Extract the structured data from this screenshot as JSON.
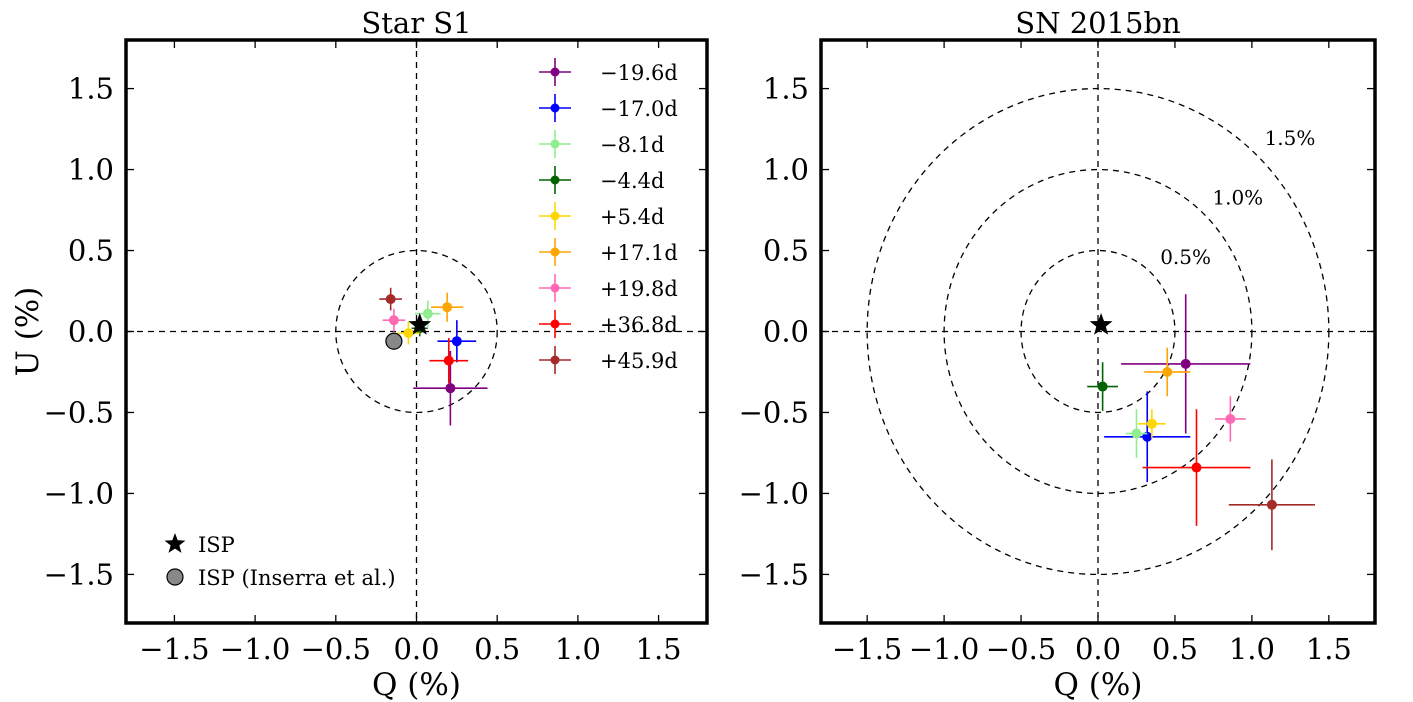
{
  "chart_data": [
    {
      "type": "scatter",
      "title": "Star S1",
      "xlabel": "Q (%)",
      "ylabel": "U (%)",
      "xlim": [
        -1.8,
        1.8
      ],
      "ylim": [
        -1.8,
        1.8
      ],
      "xticks": [
        "−1.5",
        "−1.0",
        "−0.5",
        "0.0",
        "0.5",
        "1.0",
        "1.5"
      ],
      "yticks": [
        "1.5",
        "1.0",
        "0.5",
        "0.0",
        "−0.5",
        "−1.0",
        "−1.5"
      ],
      "circles": [
        {
          "radius": 0.5
        }
      ],
      "epochs": [
        {
          "label": "−19.6d",
          "color": "#800080",
          "q": 0.21,
          "u": -0.35,
          "q_err": 0.23,
          "u_err": 0.23
        },
        {
          "label": "−17.0d",
          "color": "#0000ff",
          "q": 0.25,
          "u": -0.06,
          "q_err": 0.12,
          "u_err": 0.13
        },
        {
          "label": "−8.1d",
          "color": "#90ee90",
          "q": 0.07,
          "u": 0.11,
          "q_err": 0.08,
          "u_err": 0.08
        },
        {
          "label": "−4.4d",
          "color": "#006400",
          "q": 0.02,
          "u": 0.02,
          "q_err": 0.05,
          "u_err": 0.05
        },
        {
          "label": "+5.4d",
          "color": "#ffd700",
          "q": -0.05,
          "u": -0.01,
          "q_err": 0.07,
          "u_err": 0.07
        },
        {
          "label": "+17.1d",
          "color": "#ffa500",
          "q": 0.19,
          "u": 0.15,
          "q_err": 0.1,
          "u_err": 0.09
        },
        {
          "label": "+19.8d",
          "color": "#ff69b4",
          "q": -0.14,
          "u": 0.07,
          "q_err": 0.07,
          "u_err": 0.07
        },
        {
          "label": "+36.8d",
          "color": "#ff0000",
          "q": 0.2,
          "u": -0.18,
          "q_err": 0.12,
          "u_err": 0.14
        },
        {
          "label": "+45.9d",
          "color": "#a52a2a",
          "q": -0.16,
          "u": 0.2,
          "q_err": 0.07,
          "u_err": 0.07
        }
      ],
      "isp": {
        "q": 0.02,
        "u": 0.04
      },
      "isp_inserra": {
        "q": -0.14,
        "u": -0.06
      },
      "legend": {
        "placement": "top-right",
        "isp_label": "ISP",
        "isp_inserra_label": "ISP (Inserra et al.)",
        "isp_placement": "lower-left"
      }
    },
    {
      "type": "scatter",
      "title": "SN 2015bn",
      "xlabel": "Q (%)",
      "ylabel": "",
      "xlim": [
        -1.8,
        1.8
      ],
      "ylim": [
        -1.8,
        1.8
      ],
      "xticks": [
        "−1.5",
        "−1.0",
        "−0.5",
        "0.0",
        "0.5",
        "1.0",
        "1.5"
      ],
      "yticks": [
        "1.5",
        "1.0",
        "0.5",
        "0.0",
        "−0.5",
        "−1.0",
        "−1.5"
      ],
      "circles": [
        {
          "radius": 0.5,
          "label": "0.5%"
        },
        {
          "radius": 1.0,
          "label": "1.0%"
        },
        {
          "radius": 1.5,
          "label": "1.5%"
        }
      ],
      "epochs": [
        {
          "label": "−19.6d",
          "color": "#800080",
          "q": 0.57,
          "u": -0.2,
          "q_err": 0.42,
          "u_err": 0.43
        },
        {
          "label": "−17.0d",
          "color": "#0000ff",
          "q": 0.32,
          "u": -0.65,
          "q_err": 0.28,
          "u_err": 0.28
        },
        {
          "label": "−8.1d",
          "color": "#90ee90",
          "q": 0.25,
          "u": -0.63,
          "q_err": 0.07,
          "u_err": 0.15
        },
        {
          "label": "−4.4d",
          "color": "#006400",
          "q": 0.03,
          "u": -0.34,
          "q_err": 0.1,
          "u_err": 0.15
        },
        {
          "label": "+5.4d",
          "color": "#ffd700",
          "q": 0.35,
          "u": -0.57,
          "q_err": 0.09,
          "u_err": 0.09
        },
        {
          "label": "+17.1d",
          "color": "#ffa500",
          "q": 0.45,
          "u": -0.25,
          "q_err": 0.15,
          "u_err": 0.15
        },
        {
          "label": "+19.8d",
          "color": "#ff69b4",
          "q": 0.86,
          "u": -0.54,
          "q_err": 0.1,
          "u_err": 0.14
        },
        {
          "label": "+36.8d",
          "color": "#ff0000",
          "q": 0.64,
          "u": -0.84,
          "q_err": 0.35,
          "u_err": 0.36
        },
        {
          "label": "+45.9d",
          "color": "#a52a2a",
          "q": 1.13,
          "u": -1.07,
          "q_err": 0.28,
          "u_err": 0.28
        }
      ],
      "isp": {
        "q": 0.02,
        "u": 0.04
      }
    }
  ]
}
